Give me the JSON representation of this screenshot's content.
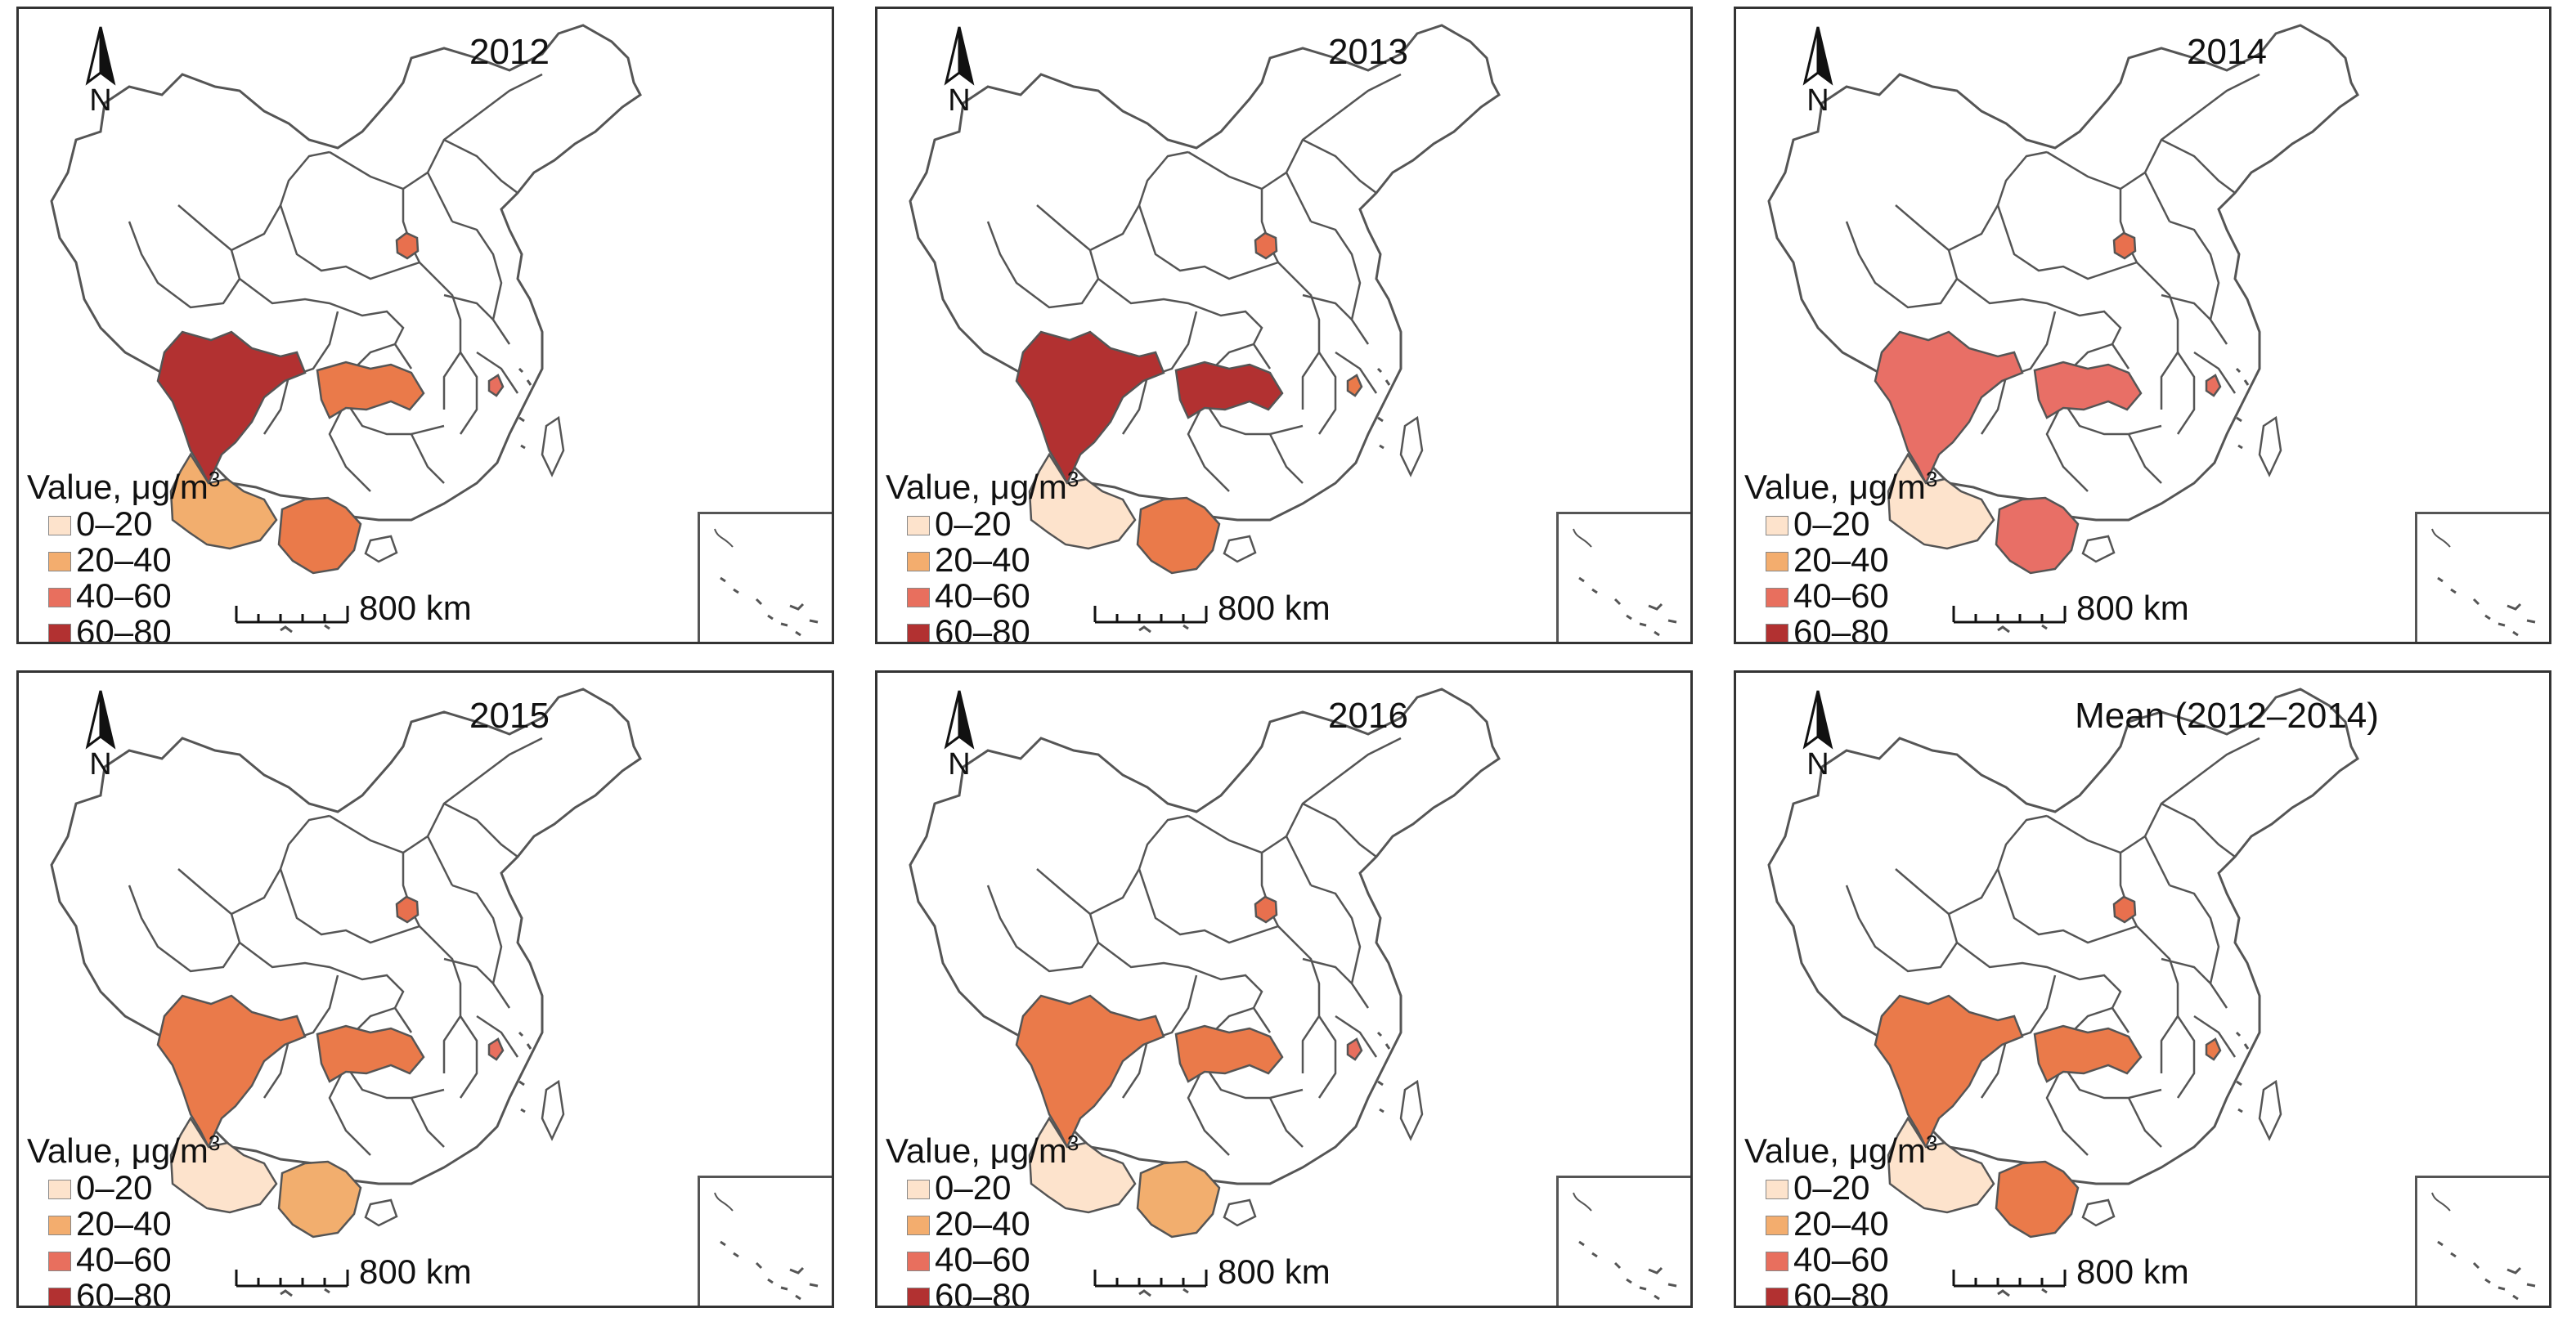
{
  "figure": {
    "legend_title_prefix": "Value, μg/m",
    "legend_title_superscript": "3",
    "north_label": "N",
    "scale_label": "800 km",
    "legend_items": [
      {
        "label": "0–20",
        "color": "#fde3cc"
      },
      {
        "label": "20–40",
        "color": "#f3ad6e"
      },
      {
        "label": "40–60",
        "color": "#e86f5e"
      },
      {
        "label": "60–80",
        "color": "#b23131"
      }
    ]
  },
  "panels": [
    {
      "title": "2012",
      "regions": {
        "sichuan": "#b23131",
        "hubei": "#ea7a4a",
        "yunnan": "#f2ae6e",
        "guangxi": "#ea7a4a",
        "beijing": "#e8704e",
        "shanghai": "#e86f5e"
      }
    },
    {
      "title": "2013",
      "regions": {
        "sichuan": "#b23131",
        "hubei": "#b23131",
        "yunnan": "#fde3cc",
        "guangxi": "#ea7a4a",
        "beijing": "#e8704e",
        "shanghai": "#ea7a4a"
      }
    },
    {
      "title": "2014",
      "regions": {
        "sichuan": "#e86f66",
        "hubei": "#e86f66",
        "yunnan": "#fde3cc",
        "guangxi": "#e86f66",
        "beijing": "#e8704e",
        "shanghai": "#e86f5e"
      }
    },
    {
      "title": "2015",
      "regions": {
        "sichuan": "#ea7a4a",
        "hubei": "#ea7a4a",
        "yunnan": "#fde3cc",
        "guangxi": "#f2ae6e",
        "beijing": "#e8704e",
        "shanghai": "#e86f5e"
      }
    },
    {
      "title": "2016",
      "regions": {
        "sichuan": "#ea7a4a",
        "hubei": "#ea7a4a",
        "yunnan": "#fde3cc",
        "guangxi": "#f2ae6e",
        "beijing": "#e8704e",
        "shanghai": "#e86f5e"
      }
    },
    {
      "title": "Mean (2012–2014)",
      "regions": {
        "sichuan": "#ea7a4a",
        "hubei": "#ea7a4a",
        "yunnan": "#fde3cc",
        "guangxi": "#ea7a4a",
        "beijing": "#e8704e",
        "shanghai": "#ea7a4a"
      }
    }
  ]
}
